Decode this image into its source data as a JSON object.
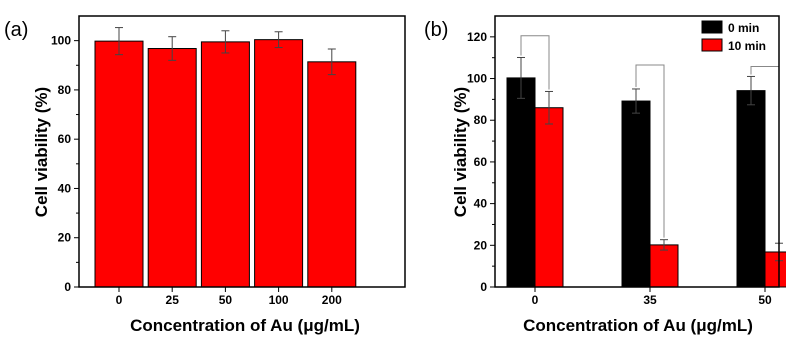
{
  "chart_data": [
    {
      "type": "bar",
      "panel_label": "(a)",
      "categories": [
        "0",
        "25",
        "50",
        "100",
        "200"
      ],
      "values": [
        99.8,
        96.8,
        99.5,
        100.4,
        91.4
      ],
      "errors": [
        5.5,
        4.8,
        4.5,
        3.2,
        5.2
      ],
      "color": "#ff0000",
      "xlabel": "Concentration of Au (μg/mL)",
      "ylabel": "Cell viability (%)",
      "ylim": [
        0,
        110
      ],
      "yticks": [
        "0",
        "20",
        "40",
        "60",
        "80",
        "100"
      ],
      "grid": false
    },
    {
      "type": "bar",
      "panel_label": "(b)",
      "categories": [
        "0",
        "35",
        "50"
      ],
      "series": [
        {
          "name": "0 min",
          "color": "#000000",
          "values": [
            100.3,
            89.2,
            94.2
          ],
          "errors": [
            9.8,
            5.8,
            6.8
          ]
        },
        {
          "name": "10 min",
          "color": "#ff0000",
          "values": [
            86.0,
            20.2,
            16.8
          ],
          "errors": [
            7.8,
            2.5,
            4.2
          ]
        }
      ],
      "xlabel": "Concentration of Au (μg/mL)",
      "ylabel": "Cell viability (%)",
      "ylim": [
        0,
        130
      ],
      "yticks": [
        "0",
        "20",
        "40",
        "60",
        "80",
        "100",
        "120"
      ],
      "significance_brackets": [
        {
          "category": "0",
          "top": 120.5
        },
        {
          "category": "35",
          "top": 106.5
        },
        {
          "category": "50",
          "top": 105.8
        }
      ],
      "legend_position": "top-right",
      "grid": false
    }
  ]
}
